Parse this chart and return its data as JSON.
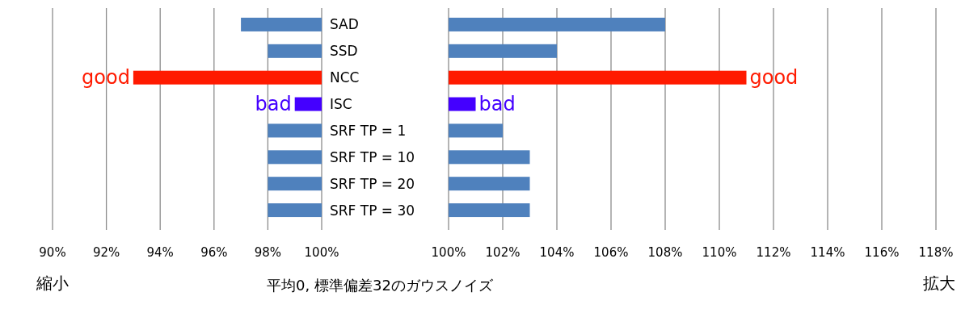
{
  "chart_data": [
    {
      "type": "bar",
      "orientation": "horizontal",
      "xlabel": "縮小",
      "categories": [
        "SAD",
        "SSD",
        "NCC",
        "ISC",
        "SRF TP = 1",
        "SRF TP = 10",
        "SRF TP = 20",
        "SRF TP = 30"
      ],
      "base": [
        100,
        100,
        100,
        100,
        100,
        100,
        100,
        100
      ],
      "values": [
        -3,
        -2,
        -7,
        -1,
        -2,
        -2,
        -2,
        -2
      ],
      "colors": [
        "#4f81bd",
        "#4f81bd",
        "#ff1a00",
        "#4400ff",
        "#4f81bd",
        "#4f81bd",
        "#4f81bd",
        "#4f81bd"
      ],
      "xlim": [
        90,
        100
      ],
      "xticks": [
        {
          "value": 90,
          "label": "90%"
        },
        {
          "value": 92,
          "label": "92%"
        },
        {
          "value": 94,
          "label": "94%"
        },
        {
          "value": 96,
          "label": "96%"
        },
        {
          "value": 98,
          "label": "98%"
        },
        {
          "value": 100,
          "label": "100%"
        }
      ],
      "grid": "x",
      "tick_labels": "x",
      "annotations": [
        {
          "text": "good",
          "x": 93,
          "y": "NCC"
        },
        {
          "text": "bad",
          "x": 99,
          "y": "ISC"
        },
        "平均0, 標準偏差32のガウスノイズ"
      ]
    },
    {
      "type": "bar",
      "orientation": "horizontal",
      "xlabel": "拡大",
      "categories": [
        "SAD",
        "SSD",
        "NCC",
        "ISC",
        "SRF TP = 1",
        "SRF TP = 10",
        "SRF TP = 20",
        "SRF TP = 30"
      ],
      "base": [
        100,
        100,
        100,
        100,
        100,
        100,
        100,
        100
      ],
      "values": [
        8,
        4,
        11,
        1,
        2,
        3,
        3,
        3
      ],
      "colors": [
        "#4f81bd",
        "#4f81bd",
        "#ff1a00",
        "#4400ff",
        "#4f81bd",
        "#4f81bd",
        "#4f81bd",
        "#4f81bd"
      ],
      "xlim": [
        100,
        118
      ],
      "xticks": [
        {
          "value": 100,
          "label": "100%"
        },
        {
          "value": 102,
          "label": "102%"
        },
        {
          "value": 104,
          "label": "104%"
        },
        {
          "value": 106,
          "label": "106%"
        },
        {
          "value": 108,
          "label": "108%"
        },
        {
          "value": 110,
          "label": "110%"
        },
        {
          "value": 112,
          "label": "112%"
        },
        {
          "value": 114,
          "label": "114%"
        },
        {
          "value": 116,
          "label": "116%"
        },
        {
          "value": 118,
          "label": "118%"
        }
      ],
      "grid": "x",
      "annotations": [
        {
          "text": "good",
          "x": 111,
          "y": "NCC"
        },
        {
          "text": "bad",
          "x": 101,
          "y": "ISC"
        }
      ]
    }
  ]
}
